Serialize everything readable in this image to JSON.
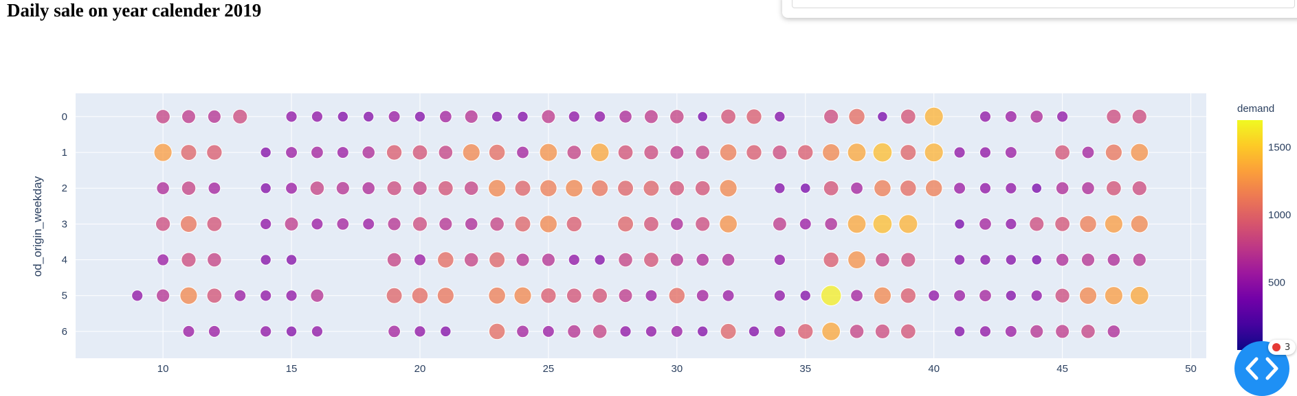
{
  "page": {
    "title": "Daily sale on year calender 2019"
  },
  "widget": {
    "badge_count": "3"
  },
  "chart_data": {
    "type": "scatter",
    "title": "Daily sale on year calender 2019",
    "xlabel": "",
    "ylabel": "od_origin_weekday",
    "xlim": [
      6.6,
      50.6
    ],
    "ylim": [
      -0.65,
      6.75
    ],
    "y_reversed": true,
    "x_ticks": [
      10,
      15,
      20,
      25,
      30,
      35,
      40,
      45,
      50
    ],
    "y_ticks": [
      0,
      1,
      2,
      3,
      4,
      5,
      6
    ],
    "grid": true,
    "colorbar": {
      "title": "demand",
      "ticks": [
        500,
        1000,
        1500
      ],
      "range": [
        0,
        1700
      ]
    },
    "colorscale": [
      "#0d0887",
      "#46039f",
      "#7201a8",
      "#9c179e",
      "#bd3786",
      "#d8576b",
      "#ed7953",
      "#fb9f3a",
      "#fdca26",
      "#f0f921"
    ],
    "points": [
      {
        "x": 10,
        "y": 0,
        "demand": 800
      },
      {
        "x": 11,
        "y": 0,
        "demand": 750
      },
      {
        "x": 12,
        "y": 0,
        "demand": 700
      },
      {
        "x": 13,
        "y": 0,
        "demand": 850
      },
      {
        "x": 15,
        "y": 0,
        "demand": 500
      },
      {
        "x": 16,
        "y": 0,
        "demand": 500
      },
      {
        "x": 17,
        "y": 0,
        "demand": 450
      },
      {
        "x": 18,
        "y": 0,
        "demand": 450
      },
      {
        "x": 19,
        "y": 0,
        "demand": 550
      },
      {
        "x": 20,
        "y": 0,
        "demand": 450
      },
      {
        "x": 21,
        "y": 0,
        "demand": 600
      },
      {
        "x": 22,
        "y": 0,
        "demand": 700
      },
      {
        "x": 23,
        "y": 0,
        "demand": 450
      },
      {
        "x": 24,
        "y": 0,
        "demand": 450
      },
      {
        "x": 25,
        "y": 0,
        "demand": 750
      },
      {
        "x": 26,
        "y": 0,
        "demand": 500
      },
      {
        "x": 27,
        "y": 0,
        "demand": 500
      },
      {
        "x": 28,
        "y": 0,
        "demand": 650
      },
      {
        "x": 29,
        "y": 0,
        "demand": 750
      },
      {
        "x": 30,
        "y": 0,
        "demand": 800
      },
      {
        "x": 31,
        "y": 0,
        "demand": 400
      },
      {
        "x": 32,
        "y": 0,
        "demand": 900
      },
      {
        "x": 33,
        "y": 0,
        "demand": 950
      },
      {
        "x": 34,
        "y": 0,
        "demand": 450
      },
      {
        "x": 36,
        "y": 0,
        "demand": 850
      },
      {
        "x": 37,
        "y": 0,
        "demand": 1050
      },
      {
        "x": 38,
        "y": 0,
        "demand": 400
      },
      {
        "x": 39,
        "y": 0,
        "demand": 900
      },
      {
        "x": 40,
        "y": 0,
        "demand": 1400
      },
      {
        "x": 42,
        "y": 0,
        "demand": 500
      },
      {
        "x": 43,
        "y": 0,
        "demand": 550
      },
      {
        "x": 44,
        "y": 0,
        "demand": 650
      },
      {
        "x": 45,
        "y": 0,
        "demand": 500
      },
      {
        "x": 47,
        "y": 0,
        "demand": 850
      },
      {
        "x": 48,
        "y": 0,
        "demand": 850
      },
      {
        "x": 10,
        "y": 1,
        "demand": 1300
      },
      {
        "x": 11,
        "y": 1,
        "demand": 1000
      },
      {
        "x": 12,
        "y": 1,
        "demand": 950
      },
      {
        "x": 14,
        "y": 1,
        "demand": 450
      },
      {
        "x": 15,
        "y": 1,
        "demand": 550
      },
      {
        "x": 16,
        "y": 1,
        "demand": 600
      },
      {
        "x": 17,
        "y": 1,
        "demand": 550
      },
      {
        "x": 18,
        "y": 1,
        "demand": 650
      },
      {
        "x": 19,
        "y": 1,
        "demand": 950
      },
      {
        "x": 20,
        "y": 1,
        "demand": 900
      },
      {
        "x": 21,
        "y": 1,
        "demand": 800
      },
      {
        "x": 22,
        "y": 1,
        "demand": 1200
      },
      {
        "x": 23,
        "y": 1,
        "demand": 1050
      },
      {
        "x": 24,
        "y": 1,
        "demand": 600
      },
      {
        "x": 25,
        "y": 1,
        "demand": 1250
      },
      {
        "x": 26,
        "y": 1,
        "demand": 800
      },
      {
        "x": 27,
        "y": 1,
        "demand": 1350
      },
      {
        "x": 28,
        "y": 1,
        "demand": 900
      },
      {
        "x": 29,
        "y": 1,
        "demand": 850
      },
      {
        "x": 30,
        "y": 1,
        "demand": 750
      },
      {
        "x": 31,
        "y": 1,
        "demand": 800
      },
      {
        "x": 32,
        "y": 1,
        "demand": 1150
      },
      {
        "x": 33,
        "y": 1,
        "demand": 950
      },
      {
        "x": 34,
        "y": 1,
        "demand": 850
      },
      {
        "x": 35,
        "y": 1,
        "demand": 950
      },
      {
        "x": 36,
        "y": 1,
        "demand": 1200
      },
      {
        "x": 37,
        "y": 1,
        "demand": 1350
      },
      {
        "x": 38,
        "y": 1,
        "demand": 1450
      },
      {
        "x": 39,
        "y": 1,
        "demand": 1000
      },
      {
        "x": 40,
        "y": 1,
        "demand": 1400
      },
      {
        "x": 41,
        "y": 1,
        "demand": 500
      },
      {
        "x": 42,
        "y": 1,
        "demand": 500
      },
      {
        "x": 43,
        "y": 1,
        "demand": 550
      },
      {
        "x": 45,
        "y": 1,
        "demand": 900
      },
      {
        "x": 46,
        "y": 1,
        "demand": 600
      },
      {
        "x": 47,
        "y": 1,
        "demand": 1100
      },
      {
        "x": 48,
        "y": 1,
        "demand": 1250
      },
      {
        "x": 10,
        "y": 2,
        "demand": 650
      },
      {
        "x": 11,
        "y": 2,
        "demand": 800
      },
      {
        "x": 12,
        "y": 2,
        "demand": 600
      },
      {
        "x": 14,
        "y": 2,
        "demand": 450
      },
      {
        "x": 15,
        "y": 2,
        "demand": 550
      },
      {
        "x": 16,
        "y": 2,
        "demand": 800
      },
      {
        "x": 17,
        "y": 2,
        "demand": 700
      },
      {
        "x": 18,
        "y": 2,
        "demand": 650
      },
      {
        "x": 19,
        "y": 2,
        "demand": 850
      },
      {
        "x": 20,
        "y": 2,
        "demand": 800
      },
      {
        "x": 21,
        "y": 2,
        "demand": 900
      },
      {
        "x": 22,
        "y": 2,
        "demand": 800
      },
      {
        "x": 23,
        "y": 2,
        "demand": 1200
      },
      {
        "x": 24,
        "y": 2,
        "demand": 1000
      },
      {
        "x": 25,
        "y": 2,
        "demand": 1150
      },
      {
        "x": 26,
        "y": 2,
        "demand": 1200
      },
      {
        "x": 27,
        "y": 2,
        "demand": 1100
      },
      {
        "x": 28,
        "y": 2,
        "demand": 1000
      },
      {
        "x": 29,
        "y": 2,
        "demand": 1000
      },
      {
        "x": 30,
        "y": 2,
        "demand": 900
      },
      {
        "x": 31,
        "y": 2,
        "demand": 900
      },
      {
        "x": 32,
        "y": 2,
        "demand": 1200
      },
      {
        "x": 34,
        "y": 2,
        "demand": 450
      },
      {
        "x": 35,
        "y": 2,
        "demand": 400
      },
      {
        "x": 36,
        "y": 2,
        "demand": 900
      },
      {
        "x": 37,
        "y": 2,
        "demand": 600
      },
      {
        "x": 38,
        "y": 2,
        "demand": 1150
      },
      {
        "x": 39,
        "y": 2,
        "demand": 1050
      },
      {
        "x": 40,
        "y": 2,
        "demand": 1150
      },
      {
        "x": 41,
        "y": 2,
        "demand": 550
      },
      {
        "x": 42,
        "y": 2,
        "demand": 500
      },
      {
        "x": 43,
        "y": 2,
        "demand": 500
      },
      {
        "x": 44,
        "y": 2,
        "demand": 400
      },
      {
        "x": 45,
        "y": 2,
        "demand": 650
      },
      {
        "x": 46,
        "y": 2,
        "demand": 650
      },
      {
        "x": 47,
        "y": 2,
        "demand": 900
      },
      {
        "x": 48,
        "y": 2,
        "demand": 850
      },
      {
        "x": 10,
        "y": 3,
        "demand": 850
      },
      {
        "x": 11,
        "y": 3,
        "demand": 1100
      },
      {
        "x": 12,
        "y": 3,
        "demand": 900
      },
      {
        "x": 14,
        "y": 3,
        "demand": 500
      },
      {
        "x": 15,
        "y": 3,
        "demand": 750
      },
      {
        "x": 16,
        "y": 3,
        "demand": 550
      },
      {
        "x": 17,
        "y": 3,
        "demand": 600
      },
      {
        "x": 18,
        "y": 3,
        "demand": 550
      },
      {
        "x": 19,
        "y": 3,
        "demand": 700
      },
      {
        "x": 20,
        "y": 3,
        "demand": 850
      },
      {
        "x": 21,
        "y": 3,
        "demand": 700
      },
      {
        "x": 22,
        "y": 3,
        "demand": 650
      },
      {
        "x": 23,
        "y": 3,
        "demand": 800
      },
      {
        "x": 24,
        "y": 3,
        "demand": 1000
      },
      {
        "x": 25,
        "y": 3,
        "demand": 1200
      },
      {
        "x": 26,
        "y": 3,
        "demand": 950
      },
      {
        "x": 28,
        "y": 3,
        "demand": 1000
      },
      {
        "x": 29,
        "y": 3,
        "demand": 900
      },
      {
        "x": 30,
        "y": 3,
        "demand": 650
      },
      {
        "x": 31,
        "y": 3,
        "demand": 850
      },
      {
        "x": 32,
        "y": 3,
        "demand": 1250
      },
      {
        "x": 34,
        "y": 3,
        "demand": 750
      },
      {
        "x": 35,
        "y": 3,
        "demand": 550
      },
      {
        "x": 36,
        "y": 3,
        "demand": 650
      },
      {
        "x": 37,
        "y": 3,
        "demand": 1350
      },
      {
        "x": 38,
        "y": 3,
        "demand": 1450
      },
      {
        "x": 39,
        "y": 3,
        "demand": 1400
      },
      {
        "x": 41,
        "y": 3,
        "demand": 400
      },
      {
        "x": 42,
        "y": 3,
        "demand": 600
      },
      {
        "x": 43,
        "y": 3,
        "demand": 500
      },
      {
        "x": 44,
        "y": 3,
        "demand": 850
      },
      {
        "x": 45,
        "y": 3,
        "demand": 900
      },
      {
        "x": 46,
        "y": 3,
        "demand": 1150
      },
      {
        "x": 47,
        "y": 3,
        "demand": 1300
      },
      {
        "x": 48,
        "y": 3,
        "demand": 1200
      },
      {
        "x": 10,
        "y": 4,
        "demand": 550
      },
      {
        "x": 11,
        "y": 4,
        "demand": 850
      },
      {
        "x": 12,
        "y": 4,
        "demand": 800
      },
      {
        "x": 14,
        "y": 4,
        "demand": 450
      },
      {
        "x": 15,
        "y": 4,
        "demand": 450
      },
      {
        "x": 19,
        "y": 4,
        "demand": 800
      },
      {
        "x": 20,
        "y": 4,
        "demand": 550
      },
      {
        "x": 21,
        "y": 4,
        "demand": 1050
      },
      {
        "x": 22,
        "y": 4,
        "demand": 800
      },
      {
        "x": 23,
        "y": 4,
        "demand": 1000
      },
      {
        "x": 24,
        "y": 4,
        "demand": 700
      },
      {
        "x": 25,
        "y": 4,
        "demand": 700
      },
      {
        "x": 26,
        "y": 4,
        "demand": 500
      },
      {
        "x": 27,
        "y": 4,
        "demand": 450
      },
      {
        "x": 28,
        "y": 4,
        "demand": 800
      },
      {
        "x": 29,
        "y": 4,
        "demand": 900
      },
      {
        "x": 30,
        "y": 4,
        "demand": 700
      },
      {
        "x": 31,
        "y": 4,
        "demand": 650
      },
      {
        "x": 32,
        "y": 4,
        "demand": 650
      },
      {
        "x": 34,
        "y": 4,
        "demand": 500
      },
      {
        "x": 36,
        "y": 4,
        "demand": 950
      },
      {
        "x": 37,
        "y": 4,
        "demand": 1250
      },
      {
        "x": 38,
        "y": 4,
        "demand": 800
      },
      {
        "x": 39,
        "y": 4,
        "demand": 850
      },
      {
        "x": 41,
        "y": 4,
        "demand": 450
      },
      {
        "x": 42,
        "y": 4,
        "demand": 450
      },
      {
        "x": 43,
        "y": 4,
        "demand": 450
      },
      {
        "x": 44,
        "y": 4,
        "demand": 400
      },
      {
        "x": 45,
        "y": 4,
        "demand": 650
      },
      {
        "x": 46,
        "y": 4,
        "demand": 700
      },
      {
        "x": 47,
        "y": 4,
        "demand": 650
      },
      {
        "x": 48,
        "y": 4,
        "demand": 700
      },
      {
        "x": 9,
        "y": 5,
        "demand": 500
      },
      {
        "x": 10,
        "y": 5,
        "demand": 700
      },
      {
        "x": 11,
        "y": 5,
        "demand": 1200
      },
      {
        "x": 12,
        "y": 5,
        "demand": 900
      },
      {
        "x": 13,
        "y": 5,
        "demand": 550
      },
      {
        "x": 14,
        "y": 5,
        "demand": 500
      },
      {
        "x": 15,
        "y": 5,
        "demand": 500
      },
      {
        "x": 16,
        "y": 5,
        "demand": 700
      },
      {
        "x": 19,
        "y": 5,
        "demand": 1000
      },
      {
        "x": 20,
        "y": 5,
        "demand": 1050
      },
      {
        "x": 21,
        "y": 5,
        "demand": 1100
      },
      {
        "x": 23,
        "y": 5,
        "demand": 1150
      },
      {
        "x": 24,
        "y": 5,
        "demand": 1200
      },
      {
        "x": 25,
        "y": 5,
        "demand": 950
      },
      {
        "x": 26,
        "y": 5,
        "demand": 900
      },
      {
        "x": 27,
        "y": 5,
        "demand": 900
      },
      {
        "x": 28,
        "y": 5,
        "demand": 750
      },
      {
        "x": 29,
        "y": 5,
        "demand": 550
      },
      {
        "x": 30,
        "y": 5,
        "demand": 1050
      },
      {
        "x": 31,
        "y": 5,
        "demand": 600
      },
      {
        "x": 32,
        "y": 5,
        "demand": 550
      },
      {
        "x": 34,
        "y": 5,
        "demand": 500
      },
      {
        "x": 35,
        "y": 5,
        "demand": 450
      },
      {
        "x": 36,
        "y": 5,
        "demand": 1650
      },
      {
        "x": 37,
        "y": 5,
        "demand": 600
      },
      {
        "x": 38,
        "y": 5,
        "demand": 1200
      },
      {
        "x": 39,
        "y": 5,
        "demand": 950
      },
      {
        "x": 40,
        "y": 5,
        "demand": 500
      },
      {
        "x": 41,
        "y": 5,
        "demand": 550
      },
      {
        "x": 42,
        "y": 5,
        "demand": 600
      },
      {
        "x": 43,
        "y": 5,
        "demand": 450
      },
      {
        "x": 44,
        "y": 5,
        "demand": 500
      },
      {
        "x": 45,
        "y": 5,
        "demand": 850
      },
      {
        "x": 46,
        "y": 5,
        "demand": 1200
      },
      {
        "x": 47,
        "y": 5,
        "demand": 1300
      },
      {
        "x": 48,
        "y": 5,
        "demand": 1350
      },
      {
        "x": 11,
        "y": 6,
        "demand": 550
      },
      {
        "x": 12,
        "y": 6,
        "demand": 550
      },
      {
        "x": 14,
        "y": 6,
        "demand": 500
      },
      {
        "x": 15,
        "y": 6,
        "demand": 450
      },
      {
        "x": 16,
        "y": 6,
        "demand": 500
      },
      {
        "x": 19,
        "y": 6,
        "demand": 600
      },
      {
        "x": 20,
        "y": 6,
        "demand": 500
      },
      {
        "x": 21,
        "y": 6,
        "demand": 450
      },
      {
        "x": 23,
        "y": 6,
        "demand": 1050
      },
      {
        "x": 24,
        "y": 6,
        "demand": 600
      },
      {
        "x": 25,
        "y": 6,
        "demand": 550
      },
      {
        "x": 26,
        "y": 6,
        "demand": 700
      },
      {
        "x": 27,
        "y": 6,
        "demand": 800
      },
      {
        "x": 28,
        "y": 6,
        "demand": 500
      },
      {
        "x": 29,
        "y": 6,
        "demand": 500
      },
      {
        "x": 30,
        "y": 6,
        "demand": 550
      },
      {
        "x": 31,
        "y": 6,
        "demand": 450
      },
      {
        "x": 32,
        "y": 6,
        "demand": 1000
      },
      {
        "x": 33,
        "y": 6,
        "demand": 450
      },
      {
        "x": 34,
        "y": 6,
        "demand": 550
      },
      {
        "x": 35,
        "y": 6,
        "demand": 950
      },
      {
        "x": 36,
        "y": 6,
        "demand": 1350
      },
      {
        "x": 37,
        "y": 6,
        "demand": 800
      },
      {
        "x": 38,
        "y": 6,
        "demand": 850
      },
      {
        "x": 39,
        "y": 6,
        "demand": 900
      },
      {
        "x": 41,
        "y": 6,
        "demand": 450
      },
      {
        "x": 42,
        "y": 6,
        "demand": 500
      },
      {
        "x": 43,
        "y": 6,
        "demand": 550
      },
      {
        "x": 44,
        "y": 6,
        "demand": 700
      },
      {
        "x": 45,
        "y": 6,
        "demand": 750
      },
      {
        "x": 46,
        "y": 6,
        "demand": 800
      },
      {
        "x": 47,
        "y": 6,
        "demand": 650
      }
    ]
  }
}
